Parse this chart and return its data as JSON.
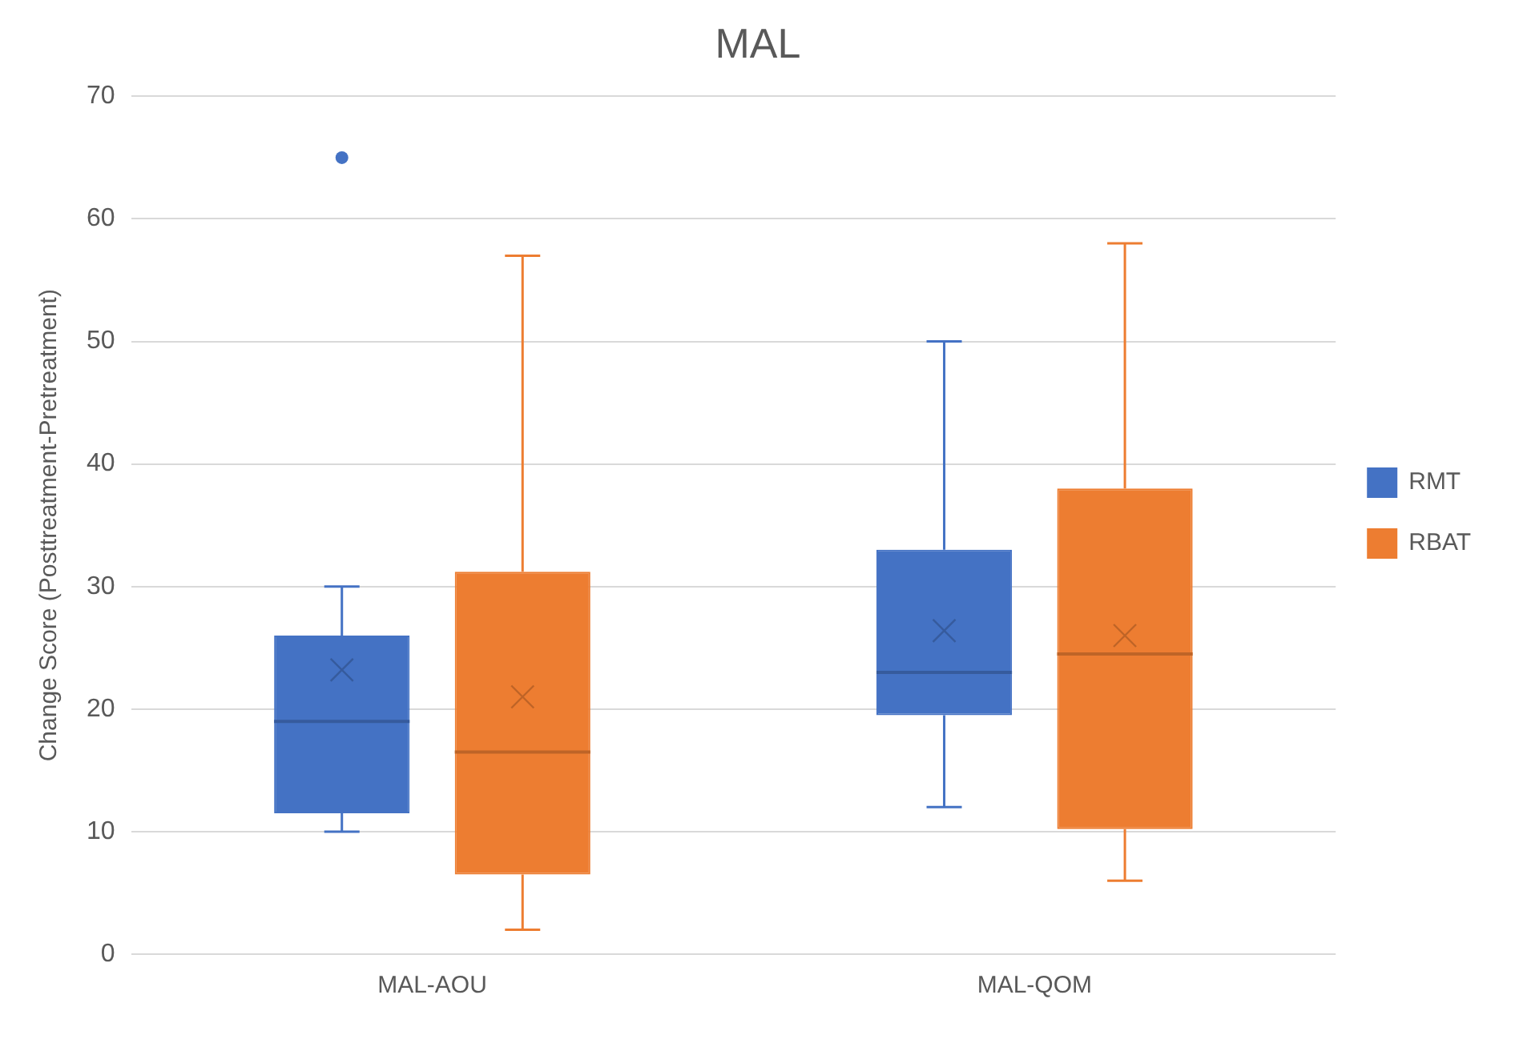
{
  "chart_data": {
    "type": "box",
    "title": "MAL",
    "ylabel": "Change Score (Posttreatment-Pretreatment)",
    "categories": [
      "MAL-AOU",
      "MAL-QOM"
    ],
    "series": [
      {
        "name": "RMT",
        "color": "#4472c4",
        "boxes": [
          {
            "low": 10,
            "q1": 11.5,
            "median": 19,
            "q3": 26,
            "high": 30,
            "mean": 23.2,
            "outliers": [
              65
            ]
          },
          {
            "low": 12,
            "q1": 19.5,
            "median": 23,
            "q3": 33,
            "high": 50,
            "mean": 26.4
          }
        ]
      },
      {
        "name": "RBAT",
        "color": "#ed7d31",
        "boxes": [
          {
            "low": 2,
            "q1": 6.5,
            "median": 16.5,
            "q3": 31.2,
            "high": 57,
            "mean": 21
          },
          {
            "low": 6,
            "q1": 10.2,
            "median": 24.5,
            "q3": 38,
            "high": 58,
            "mean": 26
          }
        ]
      }
    ],
    "ylim": [
      0,
      70
    ],
    "yticks": [
      0,
      10,
      20,
      30,
      40,
      50,
      60,
      70
    ],
    "grid": "y",
    "legend": "right"
  }
}
